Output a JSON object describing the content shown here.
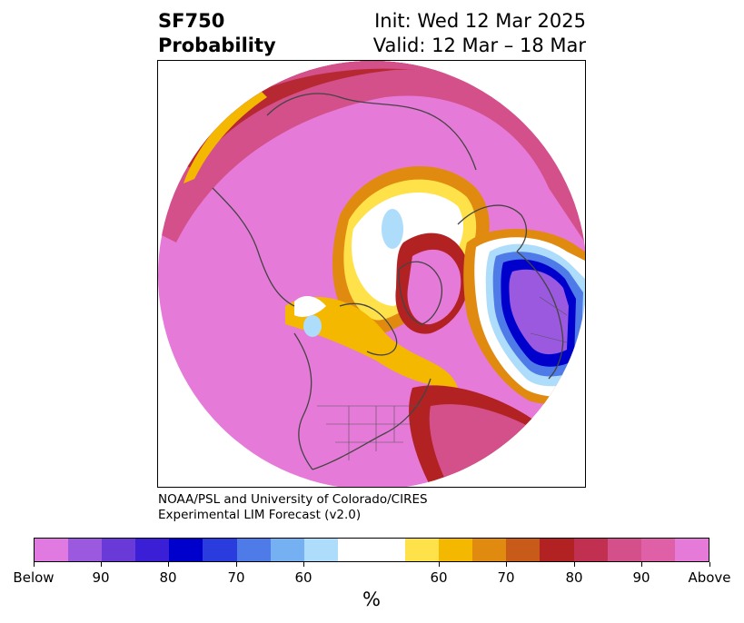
{
  "title": {
    "left_line1": "SF750",
    "left_line2": "Probability",
    "right_line1": "Init: Wed 12 Mar 2025",
    "right_line2": "Valid: 12 Mar – 18 Mar"
  },
  "credit": {
    "line1": "NOAA/PSL and University of Colorado/CIRES",
    "line2": "Experimental LIM Forecast (v2.0)"
  },
  "colorbar": {
    "colors": [
      "#e07ae0",
      "#9b59e0",
      "#6a3ad8",
      "#3a1fd6",
      "#0000cc",
      "#2a3cde",
      "#4f7be8",
      "#74b0f2",
      "#aedcfb",
      "#ffffff",
      "#ffffff",
      "#ffe14a",
      "#f5b800",
      "#e08a10",
      "#c85a1a",
      "#b22222",
      "#c13050",
      "#d4508a",
      "#e060a8",
      "#e67ad8"
    ],
    "tick_labels": [
      "Below",
      "90",
      "80",
      "70",
      "60",
      "60",
      "70",
      "80",
      "90",
      "Above"
    ],
    "units": "%"
  },
  "map": {
    "projection": "north-polar-stereographic",
    "colors": {
      "above_high": "#e67ad8",
      "above_mid": "#d4508a",
      "above_low": "#b22222",
      "orange": "#e08a10",
      "gold": "#f5b800",
      "yellow": "#ffe14a",
      "below_light": "#aedcfb",
      "below_blue": "#4f7be8",
      "below_deep": "#0000cc",
      "below_purple": "#9b59e0",
      "coast": "#444444"
    }
  }
}
